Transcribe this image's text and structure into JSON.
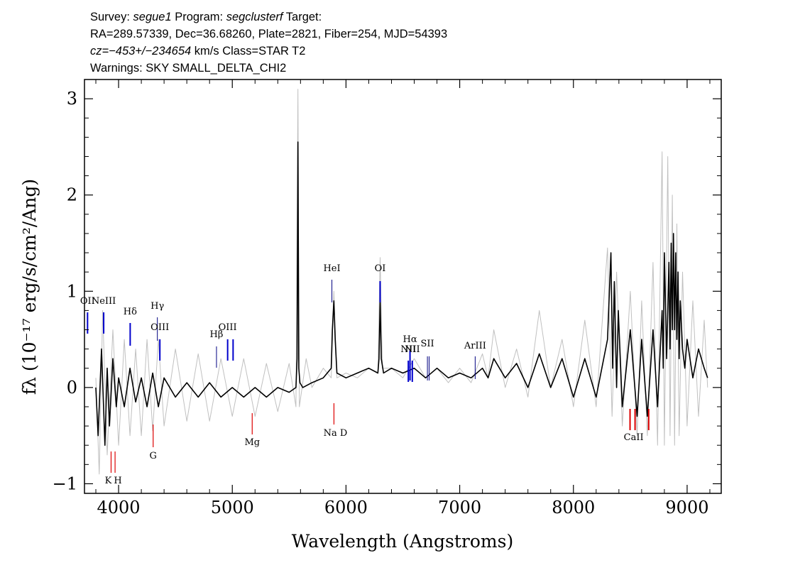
{
  "header": {
    "line1": {
      "survey_label": "Survey: ",
      "survey": "segue1",
      "program_label": " Program: ",
      "program": "segclusterf",
      "target_label": " Target:"
    },
    "line2": "RA=289.57339, Dec=36.68260, Plate=2821, Fiber=254, MJD=54393",
    "line3": {
      "cz": "cz=−453+/−234654",
      "rest": " km/s Class=STAR T2"
    },
    "line4": "Warnings: SKY SMALL_DELTA_CHI2"
  },
  "chart_data": {
    "type": "line",
    "xlabel": "Wavelength (Angstroms)",
    "ylabel": "fλ (10⁻¹⁷ erg/s/cm²/Ang)",
    "xlim": [
      3700,
      9300
    ],
    "ylim": [
      -1.1,
      3.2
    ],
    "xticks": [
      4000,
      5000,
      6000,
      7000,
      8000,
      9000
    ],
    "xtick_labels": [
      "4000",
      "5000",
      "6000",
      "7000",
      "8000",
      "9000"
    ],
    "yticks": [
      -1,
      0,
      1,
      2,
      3
    ],
    "ytick_labels": [
      "−1",
      "0",
      "1",
      "2",
      "3"
    ],
    "grid": false,
    "series": [
      {
        "color": "#c0c0c0",
        "x": [
          3800,
          3830,
          3860,
          3900,
          3950,
          4000,
          4050,
          4100,
          4150,
          4200,
          4250,
          4300,
          4350,
          4400,
          4500,
          4600,
          4700,
          4800,
          4900,
          5000,
          5100,
          5200,
          5300,
          5400,
          5500,
          5560,
          5577,
          5590,
          5650,
          5700,
          5800,
          5870,
          5893,
          5920,
          6000,
          6100,
          6200,
          6280,
          6300,
          6320,
          6400,
          6500,
          6600,
          6700,
          6800,
          6900,
          7000,
          7100,
          7200,
          7250,
          7300,
          7400,
          7500,
          7600,
          7700,
          7800,
          7900,
          8000,
          8100,
          8200,
          8300,
          8340,
          8380,
          8430,
          8500,
          8560,
          8600,
          8650,
          8700,
          8740,
          8780,
          8800,
          8830,
          8850,
          8870,
          8890,
          8910,
          8930,
          8960,
          9000,
          9050,
          9100,
          9150,
          9180
        ],
        "y": [
          0.1,
          -0.9,
          0.8,
          -0.7,
          0.6,
          -0.6,
          0.5,
          -0.5,
          0.4,
          -0.5,
          0.5,
          -0.45,
          0.5,
          -0.4,
          0.4,
          -0.35,
          0.35,
          -0.35,
          0.3,
          -0.3,
          0.3,
          -0.3,
          0.25,
          -0.25,
          0.25,
          -0.2,
          3.1,
          -0.2,
          0.3,
          0.0,
          0.2,
          0.1,
          1.0,
          0.1,
          0.15,
          0.1,
          0.2,
          0.15,
          1.35,
          0.2,
          0.2,
          0.1,
          0.3,
          0.1,
          0.2,
          0.05,
          0.2,
          0.05,
          0.35,
          0.1,
          0.6,
          0.0,
          0.4,
          -0.1,
          0.8,
          0.0,
          0.5,
          -0.2,
          0.7,
          -0.2,
          1.45,
          -0.3,
          1.2,
          -0.4,
          1.0,
          -0.5,
          0.9,
          -0.5,
          1.3,
          -0.6,
          2.45,
          -0.6,
          2.4,
          -0.5,
          2.0,
          -0.6,
          1.7,
          -0.5,
          1.2,
          -0.4,
          0.9,
          -0.3,
          0.7,
          0.0
        ]
      },
      {
        "color": "#000000",
        "x": [
          3800,
          3820,
          3850,
          3880,
          3900,
          3920,
          3950,
          3980,
          4000,
          4050,
          4100,
          4150,
          4200,
          4250,
          4300,
          4350,
          4400,
          4500,
          4600,
          4700,
          4800,
          4900,
          5000,
          5100,
          5200,
          5300,
          5400,
          5500,
          5560,
          5570,
          5577,
          5585,
          5595,
          5620,
          5700,
          5800,
          5870,
          5880,
          5893,
          5905,
          5920,
          6000,
          6100,
          6200,
          6280,
          6290,
          6300,
          6310,
          6330,
          6400,
          6500,
          6600,
          6700,
          6800,
          6900,
          7000,
          7100,
          7200,
          7250,
          7300,
          7400,
          7500,
          7600,
          7700,
          7800,
          7900,
          8000,
          8100,
          8200,
          8300,
          8330,
          8345,
          8360,
          8380,
          8395,
          8430,
          8500,
          8560,
          8600,
          8650,
          8700,
          8740,
          8780,
          8790,
          8800,
          8820,
          8840,
          8850,
          8860,
          8870,
          8880,
          8890,
          8900,
          8910,
          8920,
          8930,
          8940,
          8960,
          8980,
          9000,
          9050,
          9100,
          9150,
          9180
        ],
        "y": [
          0.0,
          -0.5,
          0.4,
          -0.6,
          0.2,
          -0.4,
          0.3,
          -0.2,
          0.1,
          -0.2,
          0.2,
          -0.15,
          0.1,
          -0.2,
          0.15,
          -0.2,
          0.1,
          -0.1,
          0.05,
          -0.1,
          0.05,
          -0.1,
          0.0,
          -0.1,
          0.0,
          -0.1,
          0.0,
          -0.05,
          0.0,
          0.3,
          2.55,
          0.2,
          0.05,
          0.0,
          0.05,
          0.1,
          0.2,
          0.6,
          0.9,
          0.5,
          0.15,
          0.1,
          0.15,
          0.2,
          0.15,
          0.3,
          0.9,
          0.3,
          0.15,
          0.2,
          0.15,
          0.2,
          0.1,
          0.2,
          0.1,
          0.15,
          0.1,
          0.2,
          0.1,
          0.3,
          0.1,
          0.25,
          0.0,
          0.35,
          0.0,
          0.3,
          -0.1,
          0.3,
          -0.1,
          0.5,
          1.4,
          0.2,
          1.1,
          0.0,
          0.8,
          -0.2,
          0.6,
          -0.3,
          0.5,
          -0.3,
          0.6,
          -0.2,
          0.8,
          0.2,
          1.4,
          0.3,
          1.3,
          0.4,
          1.5,
          0.6,
          1.6,
          0.6,
          1.4,
          0.5,
          1.2,
          0.3,
          0.9,
          0.4,
          0.2,
          0.5,
          0.1,
          0.4,
          0.2,
          0.1
        ]
      }
    ],
    "emission_lines": [
      {
        "label": "OII",
        "x": 3727
      },
      {
        "label": "NeIII",
        "x": 3869
      },
      {
        "label": "Hδ",
        "x": 4102
      },
      {
        "label": "Hγ",
        "x": 4341
      },
      {
        "label": "OIII",
        "x": 4363
      },
      {
        "label": "Hβ",
        "x": 4861
      },
      {
        "label": "OIII",
        "x": 4959
      },
      {
        "label": "OIII",
        "x": 5007
      },
      {
        "label": "HeI",
        "x": 5876
      },
      {
        "label": "OI",
        "x": 6300
      },
      {
        "label": "NII",
        "x": 6548
      },
      {
        "label": "Hα",
        "x": 6563
      },
      {
        "label": "NII",
        "x": 6583
      },
      {
        "label": "SII",
        "x": 6716
      },
      {
        "label": "SII",
        "x": 6731
      },
      {
        "label": "ArIII",
        "x": 7136
      }
    ],
    "absorption_lines": [
      {
        "label": "K",
        "x": 3934
      },
      {
        "label": "H",
        "x": 3969
      },
      {
        "label": "G",
        "x": 4304
      },
      {
        "label": "Mg",
        "x": 5175
      },
      {
        "label": "Na D",
        "x": 5894
      },
      {
        "label": "CaII",
        "x": 8498
      },
      {
        "label": "CaII",
        "x": 8542
      },
      {
        "label": "CaII",
        "x": 8662
      }
    ],
    "colors": {
      "error": "#c0c0c0",
      "flux": "#000000",
      "emission_strong": "#0000cc",
      "emission_weak": "#000080",
      "absorption": "#dd0000"
    }
  }
}
